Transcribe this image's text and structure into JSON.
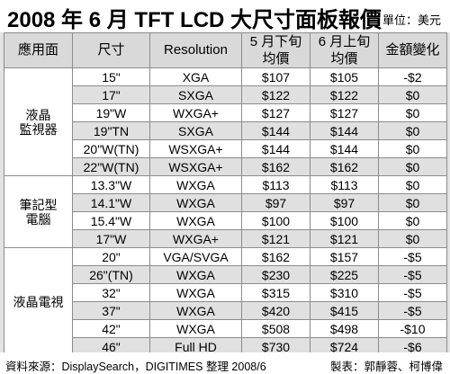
{
  "title": "2008 年 6 月 TFT LCD 大尺寸面板報價",
  "unit": "單位：美元",
  "headers": {
    "category": "應用面",
    "size": "尺寸",
    "resolution": "Resolution",
    "late_may_line1": "5 月下旬",
    "late_may_line2": "均價",
    "early_jun_line1": "6 月上旬",
    "early_jun_line2": "均價",
    "change": "金額變化"
  },
  "groups": [
    {
      "label_line1": "液晶",
      "label_line2": "監視器",
      "rows": [
        {
          "size": "15\"",
          "resolution": "XGA",
          "late_may": "$107",
          "early_jun": "$105",
          "change": "-$2"
        },
        {
          "size": "17\"",
          "resolution": "SXGA",
          "late_may": "$122",
          "early_jun": "$122",
          "change": "$0"
        },
        {
          "size": "19\"W",
          "resolution": "WXGA+",
          "late_may": "$127",
          "early_jun": "$127",
          "change": "$0"
        },
        {
          "size": "19\"TN",
          "resolution": "SXGA",
          "late_may": "$144",
          "early_jun": "$144",
          "change": "$0"
        },
        {
          "size": "20\"W(TN)",
          "resolution": "WSXGA+",
          "late_may": "$144",
          "early_jun": "$144",
          "change": "$0"
        },
        {
          "size": "22\"W(TN)",
          "resolution": "WSXGA+",
          "late_may": "$162",
          "early_jun": "$162",
          "change": "$0"
        }
      ]
    },
    {
      "label_line1": "筆記型",
      "label_line2": "電腦",
      "rows": [
        {
          "size": "13.3\"W",
          "resolution": "WXGA",
          "late_may": "$113",
          "early_jun": "$113",
          "change": "$0"
        },
        {
          "size": "14.1\"W",
          "resolution": "WXGA",
          "late_may": "$97",
          "early_jun": "$97",
          "change": "$0"
        },
        {
          "size": "15.4\"W",
          "resolution": "WXGA",
          "late_may": "$100",
          "early_jun": "$100",
          "change": "$0"
        },
        {
          "size": "17\"W",
          "resolution": "WXGA+",
          "late_may": "$121",
          "early_jun": "$121",
          "change": "$0"
        }
      ]
    },
    {
      "label_line1": "液晶電視",
      "label_line2": "",
      "rows": [
        {
          "size": "20\"",
          "resolution": "VGA/SVGA",
          "late_may": "$162",
          "early_jun": "$157",
          "change": "-$5"
        },
        {
          "size": "26\"(TN)",
          "resolution": "WXGA",
          "late_may": "$230",
          "early_jun": "$225",
          "change": "-$5"
        },
        {
          "size": "32\"",
          "resolution": "WXGA",
          "late_may": "$315",
          "early_jun": "$310",
          "change": "-$5"
        },
        {
          "size": "37\"",
          "resolution": "WXGA",
          "late_may": "$420",
          "early_jun": "$415",
          "change": "-$5"
        },
        {
          "size": "42\"",
          "resolution": "WXGA",
          "late_may": "$508",
          "early_jun": "$498",
          "change": "-$10"
        },
        {
          "size": "46\"",
          "resolution": "Full HD",
          "late_may": "$730",
          "early_jun": "$724",
          "change": "-$6"
        }
      ]
    }
  ],
  "footer": {
    "source": "資料來源：DisplaySearch，DIGITIMES 整理  2008/6",
    "credit": "製表：郭靜蓉、柯博偉"
  }
}
